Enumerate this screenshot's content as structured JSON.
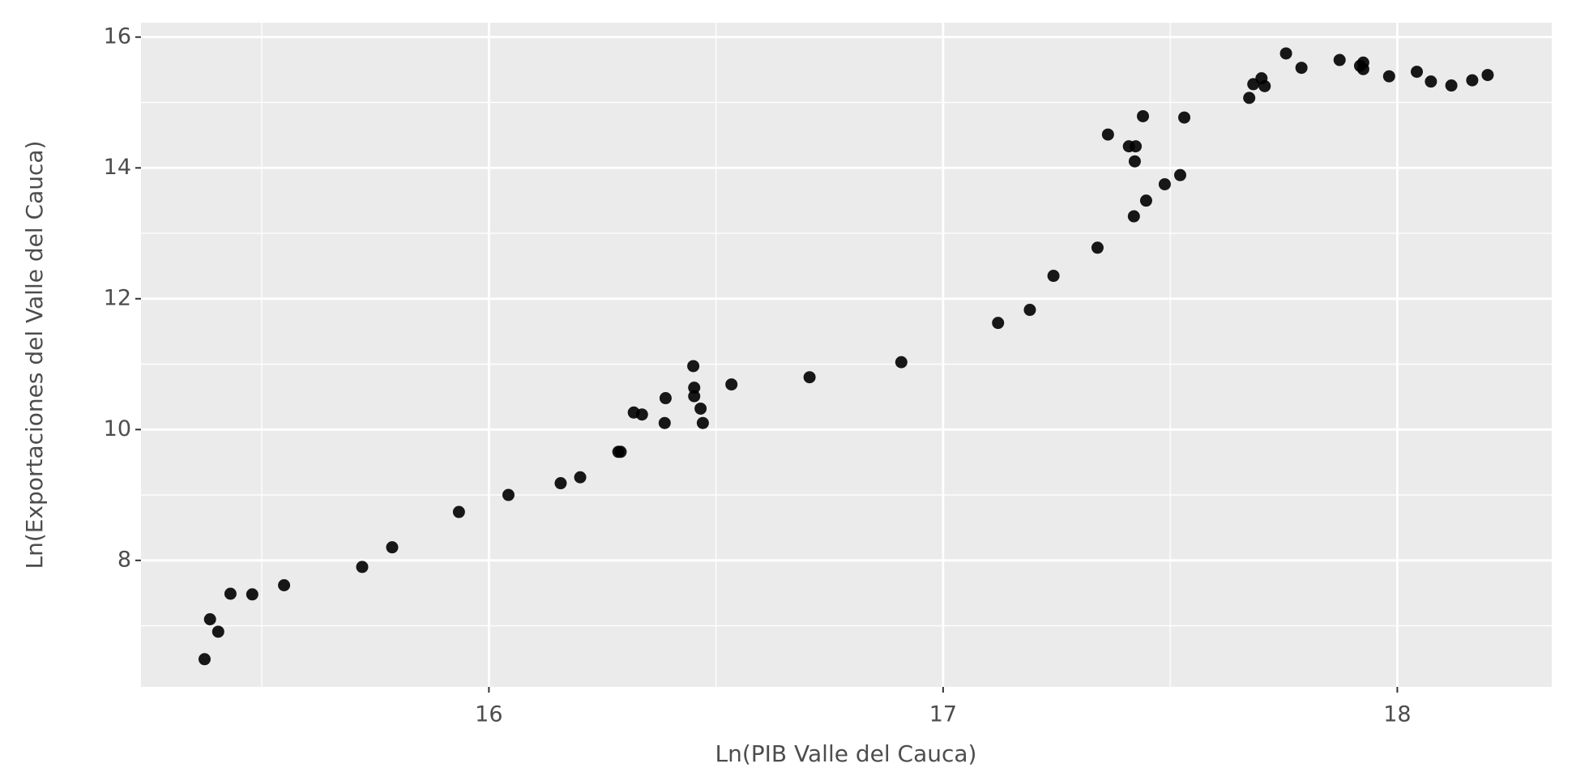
{
  "chart_data": {
    "type": "scatter",
    "x_label": "Ln(PIB Valle del Cauca)",
    "y_label": "Ln(Exportaciones del Valle del Cauca)",
    "x": [
      15.374,
      15.386,
      15.404,
      15.431,
      15.479,
      15.549,
      15.721,
      15.787,
      15.934,
      16.043,
      16.158,
      16.201,
      16.285,
      16.29,
      16.319,
      16.337,
      16.387,
      16.389,
      16.45,
      16.452,
      16.452,
      16.466,
      16.471,
      16.534,
      16.706,
      16.908,
      17.121,
      17.191,
      17.243,
      17.34,
      17.363,
      17.409,
      17.424,
      17.422,
      17.42,
      17.44,
      17.447,
      17.488,
      17.522,
      17.531,
      17.674,
      17.683,
      17.701,
      17.708,
      17.755,
      17.789,
      17.873,
      17.918,
      17.925,
      17.925,
      17.982,
      18.043,
      18.074,
      18.119,
      18.165,
      18.199
    ],
    "values": [
      6.49,
      7.1,
      6.91,
      7.49,
      7.48,
      7.62,
      7.9,
      8.2,
      8.74,
      9.0,
      9.18,
      9.27,
      9.66,
      9.66,
      10.26,
      10.23,
      10.1,
      10.48,
      10.97,
      10.64,
      10.51,
      10.32,
      10.1,
      10.69,
      10.8,
      11.03,
      11.63,
      11.83,
      12.35,
      12.78,
      14.51,
      14.33,
      14.33,
      14.1,
      13.26,
      14.79,
      13.5,
      13.75,
      13.89,
      14.77,
      15.07,
      15.28,
      15.37,
      15.25,
      15.75,
      15.53,
      15.65,
      15.56,
      15.61,
      15.51,
      15.4,
      15.47,
      15.32,
      15.26,
      15.34,
      15.42
    ],
    "color": "#000000",
    "xlim": [
      15.234,
      18.34
    ],
    "ylim": [
      6.066,
      16.22
    ],
    "xticks": [
      16,
      17,
      18
    ],
    "yticks": [
      8,
      10,
      12,
      14,
      16
    ],
    "x_minor_grid": [
      15.5,
      16.5,
      17.5
    ],
    "y_minor_grid": [
      7,
      9,
      11,
      13,
      15
    ],
    "grid": true,
    "panel_color": "#ebebeb"
  }
}
